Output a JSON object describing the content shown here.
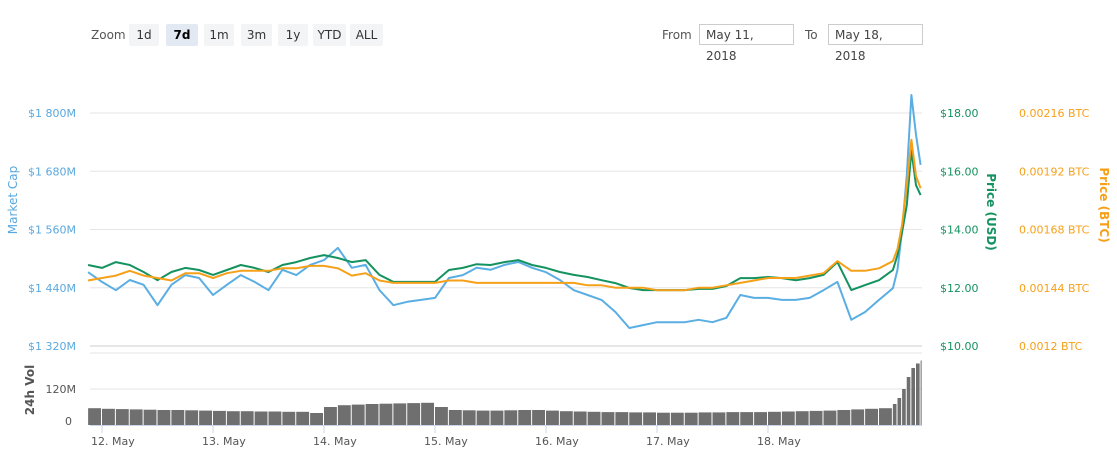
{
  "toolbar": {
    "zoom_label": "Zoom",
    "zoom_buttons": [
      "1d",
      "7d",
      "1m",
      "3m",
      "1y",
      "YTD",
      "ALL"
    ],
    "selected_zoom": "7d",
    "from_label": "From",
    "from_value": "May 11, 2018",
    "to_label": "To",
    "to_value": "May 18, 2018"
  },
  "colors": {
    "market_cap": "#5aaee3",
    "price_usd": "#14925f",
    "price_btc": "#f6a019",
    "volume": "#6f6f6f",
    "grid": "#e6e6e6"
  },
  "chart_data": [
    {
      "type": "line",
      "grid": true,
      "x_tick_labels": [
        "12. May",
        "13. May",
        "14. May",
        "15. May",
        "16. May",
        "17. May",
        "18. May"
      ],
      "x_ticks": [
        "2018-05-12T00:00",
        "2018-05-13T00:00",
        "2018-05-14T00:00",
        "2018-05-15T00:00",
        "2018-05-16T00:00",
        "2018-05-17T00:00",
        "2018-05-18T00:00"
      ],
      "axes": {
        "market_cap": {
          "label": "Market Cap",
          "ylim": [
            1320,
            1800
          ],
          "tick_labels": [
            "$1 800M",
            "$1 680M",
            "$1 560M",
            "$1 440M",
            "$1 320M"
          ],
          "position": "left"
        },
        "price_usd": {
          "label": "Price (USD)",
          "ylim": [
            10,
            18
          ],
          "tick_labels": [
            "$18.00",
            "$16.00",
            "$14.00",
            "$12.00",
            "$10.00"
          ],
          "position": "right"
        },
        "price_btc": {
          "label": "Price (BTC)",
          "ylim": [
            0.0012,
            0.00216
          ],
          "tick_labels": [
            "0.00216 BTC",
            "0.00192 BTC",
            "0.00168 BTC",
            "0.00144 BTC",
            "0.0012 BTC"
          ],
          "position": "right"
        }
      },
      "x": [
        "2018-05-11T21:00",
        "2018-05-12T00:00",
        "2018-05-12T03:00",
        "2018-05-12T06:00",
        "2018-05-12T09:00",
        "2018-05-12T12:00",
        "2018-05-12T15:00",
        "2018-05-12T18:00",
        "2018-05-12T21:00",
        "2018-05-13T00:00",
        "2018-05-13T03:00",
        "2018-05-13T06:00",
        "2018-05-13T09:00",
        "2018-05-13T12:00",
        "2018-05-13T15:00",
        "2018-05-13T18:00",
        "2018-05-13T21:00",
        "2018-05-14T00:00",
        "2018-05-14T03:00",
        "2018-05-14T06:00",
        "2018-05-14T09:00",
        "2018-05-14T12:00",
        "2018-05-14T15:00",
        "2018-05-14T18:00",
        "2018-05-14T21:00",
        "2018-05-15T00:00",
        "2018-05-15T03:00",
        "2018-05-15T06:00",
        "2018-05-15T09:00",
        "2018-05-15T12:00",
        "2018-05-15T15:00",
        "2018-05-15T18:00",
        "2018-05-15T21:00",
        "2018-05-16T00:00",
        "2018-05-16T03:00",
        "2018-05-16T06:00",
        "2018-05-16T09:00",
        "2018-05-16T12:00",
        "2018-05-16T15:00",
        "2018-05-16T18:00",
        "2018-05-16T21:00",
        "2018-05-17T00:00",
        "2018-05-17T03:00",
        "2018-05-17T06:00",
        "2018-05-17T09:00",
        "2018-05-17T12:00",
        "2018-05-17T15:00",
        "2018-05-17T18:00",
        "2018-05-17T21:00",
        "2018-05-18T00:00",
        "2018-05-18T03:00",
        "2018-05-18T06:00",
        "2018-05-18T09:00",
        "2018-05-18T12:00",
        "2018-05-18T15:00",
        "2018-05-18T18:00",
        "2018-05-18T21:00",
        "2018-05-19T00:00",
        "2018-05-19T03:00",
        "2018-05-19T04:00",
        "2018-05-19T05:00",
        "2018-05-19T06:00",
        "2018-05-19T07:00",
        "2018-05-19T08:00",
        "2018-05-19T09:00"
      ],
      "series": [
        {
          "name": "Market Cap",
          "axis": "market_cap",
          "values": [
            1472,
            1452,
            1435,
            1456,
            1446,
            1404,
            1446,
            1466,
            1460,
            1425,
            1446,
            1466,
            1452,
            1435,
            1477,
            1466,
            1487,
            1497,
            1522,
            1481,
            1487,
            1435,
            1404,
            1411,
            1415,
            1419,
            1460,
            1466,
            1481,
            1477,
            1487,
            1493,
            1481,
            1472,
            1456,
            1435,
            1425,
            1415,
            1390,
            1357,
            1363,
            1369,
            1369,
            1369,
            1374,
            1369,
            1378,
            1425,
            1419,
            1419,
            1415,
            1415,
            1419,
            1435,
            1452,
            1374,
            1390,
            1415,
            1439,
            1477,
            1559,
            1672,
            1837,
            1755,
            1693
          ]
        },
        {
          "name": "Price (USD)",
          "axis": "price_usd",
          "values": [
            12.78,
            12.68,
            12.88,
            12.78,
            12.54,
            12.26,
            12.54,
            12.68,
            12.61,
            12.44,
            12.61,
            12.78,
            12.68,
            12.54,
            12.78,
            12.88,
            13.02,
            13.12,
            13.02,
            12.88,
            12.95,
            12.44,
            12.2,
            12.2,
            12.2,
            12.2,
            12.61,
            12.68,
            12.81,
            12.78,
            12.88,
            12.95,
            12.78,
            12.68,
            12.54,
            12.44,
            12.37,
            12.26,
            12.16,
            11.99,
            11.92,
            11.92,
            11.92,
            11.92,
            11.96,
            11.96,
            12.06,
            12.33,
            12.33,
            12.37,
            12.33,
            12.26,
            12.33,
            12.44,
            12.88,
            11.92,
            12.09,
            12.26,
            12.61,
            13.12,
            13.91,
            14.84,
            16.72,
            15.52,
            15.18
          ]
        },
        {
          "name": "Price (BTC)",
          "axis": "price_btc",
          "values": [
            0.00147,
            0.00148,
            0.00149,
            0.00151,
            0.00149,
            0.00148,
            0.00147,
            0.0015,
            0.0015,
            0.00148,
            0.0015,
            0.00151,
            0.00151,
            0.00151,
            0.00152,
            0.00152,
            0.00153,
            0.00153,
            0.00152,
            0.00149,
            0.0015,
            0.00147,
            0.00146,
            0.00146,
            0.00146,
            0.00146,
            0.00147,
            0.00147,
            0.00146,
            0.00146,
            0.00146,
            0.00146,
            0.00146,
            0.00146,
            0.00146,
            0.00146,
            0.00145,
            0.00145,
            0.00144,
            0.00144,
            0.00144,
            0.00143,
            0.00143,
            0.00143,
            0.00144,
            0.00144,
            0.00145,
            0.00146,
            0.00147,
            0.00148,
            0.00148,
            0.00148,
            0.00149,
            0.0015,
            0.00155,
            0.00151,
            0.00151,
            0.00152,
            0.00155,
            0.0016,
            0.0017,
            0.00186,
            0.00205,
            0.0019,
            0.00185
          ]
        }
      ]
    },
    {
      "type": "bar",
      "ylabel": "24h Vol",
      "ylim": [
        0,
        240
      ],
      "tick_labels": [
        "120M",
        "0"
      ],
      "values": [
        56,
        54,
        53,
        52,
        51,
        50,
        50,
        49,
        48,
        47,
        46,
        46,
        45,
        45,
        44,
        44,
        40,
        60,
        66,
        68,
        70,
        71,
        72,
        73,
        74,
        60,
        50,
        49,
        48,
        48,
        49,
        50,
        50,
        48,
        46,
        45,
        44,
        43,
        43,
        42,
        42,
        41,
        41,
        41,
        42,
        42,
        43,
        43,
        43,
        44,
        45,
        46,
        47,
        48,
        50,
        52,
        54,
        56,
        70,
        90,
        120,
        160,
        190,
        205,
        215
      ]
    }
  ]
}
